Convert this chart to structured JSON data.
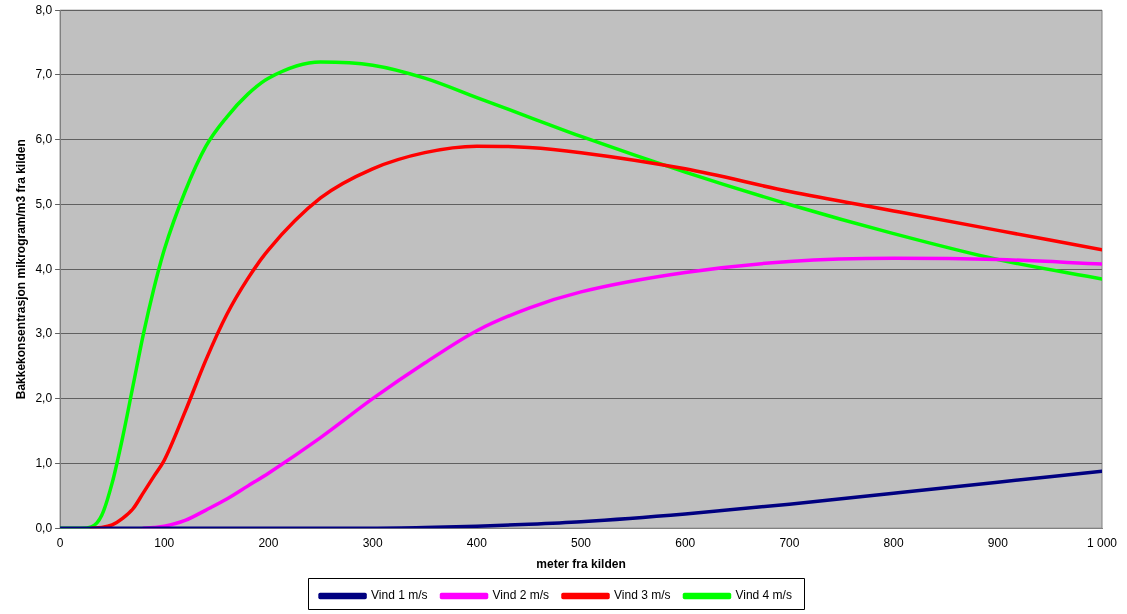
{
  "chart_data": {
    "type": "line",
    "xlabel": "meter fra kilden",
    "ylabel": "Bakkekonsentrasjon mikrogram/m3 fra kilden",
    "x": [
      0,
      20,
      30,
      40,
      50,
      60,
      70,
      80,
      90,
      100,
      120,
      140,
      160,
      180,
      200,
      250,
      300,
      350,
      400,
      450,
      500,
      600,
      700,
      800,
      900,
      1000
    ],
    "series": [
      {
        "name": "Vind 1 m/s",
        "color": "#000080",
        "values": [
          0,
          0,
          0,
          0,
          0,
          0,
          0,
          0,
          0,
          0,
          0,
          0,
          0,
          0,
          0,
          0,
          0,
          0.01,
          0.03,
          0.06,
          0.1,
          0.22,
          0.37,
          0.54,
          0.71,
          0.88
        ]
      },
      {
        "name": "Vind 2 m/s",
        "color": "#ff00ff",
        "values": [
          null,
          null,
          null,
          null,
          null,
          null,
          null,
          0,
          0.01,
          0.03,
          0.12,
          0.28,
          0.45,
          0.65,
          0.85,
          1.4,
          2.0,
          2.55,
          3.05,
          3.4,
          3.65,
          3.95,
          4.12,
          4.17,
          4.15,
          4.08
        ]
      },
      {
        "name": "Vind 3 m/s",
        "color": "#ff0000",
        "values": [
          null,
          null,
          0,
          0.01,
          0.05,
          0.15,
          0.3,
          0.55,
          0.8,
          1.05,
          1.8,
          2.6,
          3.3,
          3.85,
          4.3,
          5.1,
          5.55,
          5.8,
          5.9,
          5.88,
          5.8,
          5.55,
          5.2,
          4.9,
          4.6,
          4.3
        ]
      },
      {
        "name": "Vind 4 m/s",
        "color": "#00ff00",
        "values": [
          0,
          0,
          0.02,
          0.2,
          0.7,
          1.4,
          2.2,
          3.0,
          3.7,
          4.3,
          5.2,
          5.9,
          6.35,
          6.7,
          6.95,
          7.2,
          7.15,
          6.95,
          6.65,
          6.35,
          6.05,
          5.5,
          5.0,
          4.55,
          4.15,
          3.85
        ]
      }
    ],
    "xlim": [
      0,
      1000
    ],
    "xticks": [
      0,
      100,
      200,
      300,
      400,
      500,
      600,
      700,
      800,
      900,
      {
        "value": 1000,
        "label": "1 000"
      }
    ],
    "ylim": [
      0,
      8
    ],
    "yticks": [
      {
        "value": 0,
        "label": "0,0"
      },
      {
        "value": 1,
        "label": "1,0"
      },
      {
        "value": 2,
        "label": "2,0"
      },
      {
        "value": 3,
        "label": "3,0"
      },
      {
        "value": 4,
        "label": "4,0"
      },
      {
        "value": 5,
        "label": "5,0"
      },
      {
        "value": 6,
        "label": "6,0"
      },
      {
        "value": 7,
        "label": "7,0"
      },
      {
        "value": 8,
        "label": "8,0"
      }
    ],
    "grid": "y",
    "legend": "bottom",
    "marker": "none",
    "line_style": "solid"
  }
}
